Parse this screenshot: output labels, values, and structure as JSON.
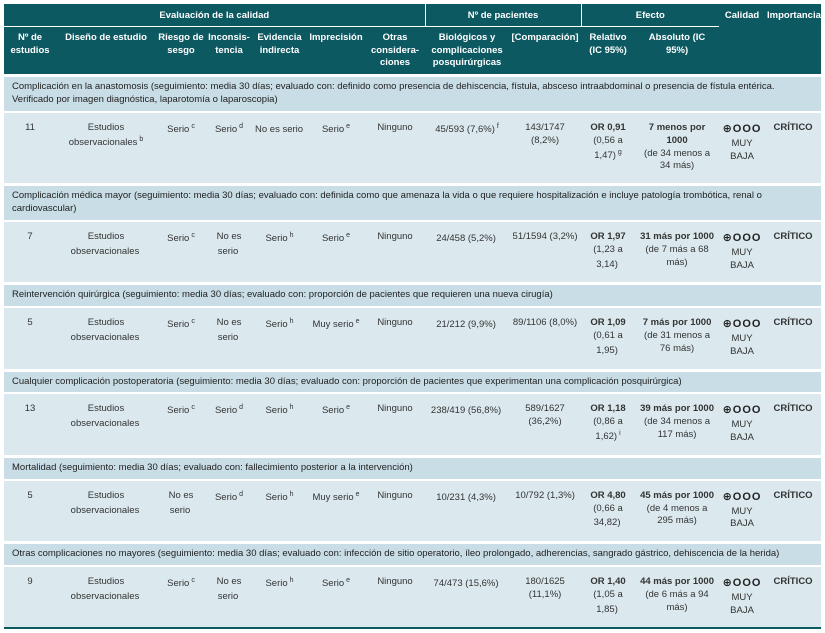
{
  "table": {
    "header": {
      "groups": {
        "quality_eval": "Evaluación de la calidad",
        "patients": "Nº de pacientes",
        "effect": "Efecto",
        "quality": "Calidad",
        "importance": "Importancia"
      },
      "columns": {
        "n_studies": "Nº de estudios",
        "design": "Diseño de estudio",
        "risk_of_bias": "Riesgo de sesgo",
        "inconsistency": "Inconsis-tencia",
        "indirectness": "Evidencia indirecta",
        "imprecision": "Imprecisión",
        "other": "Otras considera-ciones",
        "biologics": "Biológicos y complicaciones posquirúrgicas",
        "comparison": "[Comparación]",
        "relative": "Relativo (IC 95%)",
        "absolute": "Absoluto (IC 95%)"
      }
    },
    "colors": {
      "header_teal": "#0d5962",
      "section_band": "#c8dde5",
      "data_band": "#dbe9ee"
    },
    "sections": [
      {
        "title": "Complicación en la anastomosis (seguimiento: media 30 días; evaluado con: definido como presencia de dehiscencia, fístula, absceso intraabdominal o presencia de fístula entérica. Verificado por imagen diagnóstica, laparotomía o laparoscopia)",
        "row": {
          "n": "11",
          "design": "Estudios observacionales",
          "design_sup": "b",
          "rob": "Serio",
          "rob_sup": "c",
          "inc": "Serio",
          "inc_sup": "d",
          "ind": "No es serio",
          "imp": "Serio",
          "imp_sup": "e",
          "other": "Ninguno",
          "bio": "45/593 (7,6%)",
          "bio_sup": "f",
          "comp": "143/1747 (8,2%)",
          "rel_or": "OR 0,91",
          "rel_ci": "(0,56 a 1,47)",
          "rel_sup": "g",
          "abs_main": "7 menos por 1000",
          "abs_ci": "(de 34 menos a 34 más)",
          "quality_sym": "⊕OOO",
          "quality_label": "MUY BAJA",
          "importance": "CRÍTICO"
        }
      },
      {
        "title": "Complicación médica mayor (seguimiento: media 30 días; evaluado con: definida como que amenaza la vida o que requiere hospitalización e incluye patología trombótica, renal o cardiovascular)",
        "row": {
          "n": "7",
          "design": "Estudios observacionales",
          "rob": "Serio",
          "rob_sup": "c",
          "inc": "No es serio",
          "ind": "Serio",
          "ind_sup": "h",
          "imp": "Serio",
          "imp_sup": "e",
          "other": "Ninguno",
          "bio": "24/458 (5,2%)",
          "comp": "51/1594 (3,2%)",
          "rel_or": "OR 1,97",
          "rel_ci": "(1,23 a 3,14)",
          "abs_main": "31 más por 1000",
          "abs_ci": "(de 7 más a 68 más)",
          "quality_sym": "⊕OOO",
          "quality_label": "MUY BAJA",
          "importance": "CRÍTICO"
        }
      },
      {
        "title": "Reintervención quirúrgica (seguimiento: media 30 días; evaluado con: proporción de pacientes que requieren una nueva cirugía)",
        "row": {
          "n": "5",
          "design": "Estudios observacionales",
          "rob": "Serio",
          "rob_sup": "c",
          "inc": "No es serio",
          "ind": "Serio",
          "ind_sup": "h",
          "imp": "Muy serio",
          "imp_sup": "e",
          "other": "Ninguno",
          "bio": "21/212 (9,9%)",
          "comp": "89/1106 (8,0%)",
          "rel_or": "OR 1,09",
          "rel_ci": "(0,61 a 1,95)",
          "abs_main": "7 más por 1000",
          "abs_ci": "(de 31 menos a 76 más)",
          "quality_sym": "⊕OOO",
          "quality_label": "MUY BAJA",
          "importance": "CRÍTICO"
        }
      },
      {
        "title": "Cualquier complicación postoperatoria (seguimiento: media 30 días; evaluado con: proporción de pacientes que experimentan una complicación posquirúrgica)",
        "row": {
          "n": "13",
          "design": "Estudios observacionales",
          "rob": "Serio",
          "rob_sup": "c",
          "inc": "Serio",
          "inc_sup": "d",
          "ind": "Serio",
          "ind_sup": "h",
          "imp": "Serio",
          "imp_sup": "e",
          "other": "Ninguno",
          "bio": "238/419 (56,8%)",
          "comp": "589/1627 (36,2%)",
          "rel_or": "OR 1,18",
          "rel_ci": "(0,86 a 1,62)",
          "rel_sup": "i",
          "abs_main": "39 más por 1000",
          "abs_ci": "(de 34 menos a 117 más)",
          "quality_sym": "⊕OOO",
          "quality_label": "MUY BAJA",
          "importance": "CRÍTICO"
        }
      },
      {
        "title": "Mortalidad (seguimiento: media 30 días; evaluado con: fallecimiento posterior a la intervención)",
        "row": {
          "n": "5",
          "design": "Estudios observacionales",
          "rob": "No es serio",
          "inc": "Serio",
          "inc_sup": "d",
          "ind": "Serio",
          "ind_sup": "h",
          "imp": "Muy serio",
          "imp_sup": "e",
          "other": "Ninguno",
          "bio": "10/231 (4,3%)",
          "comp": "10/792 (1,3%)",
          "rel_or": "OR 4,80",
          "rel_ci": "(0,66 a 34,82)",
          "abs_main": "45 más por 1000",
          "abs_ci": "(de 4 menos a 295 más)",
          "quality_sym": "⊕OOO",
          "quality_label": "MUY BAJA",
          "importance": "CRÍTICO"
        }
      },
      {
        "title": "Otras complicaciones no mayores (seguimiento: media 30 días; evaluado con: infección de sitio operatorio, íleo prolongado, adherencias, sangrado gástrico, dehiscencia de la herida)",
        "row": {
          "n": "9",
          "design": "Estudios observacionales",
          "rob": "Serio",
          "rob_sup": "c",
          "inc": "No es serio",
          "ind": "Serio",
          "ind_sup": "h",
          "imp": "Serio",
          "imp_sup": "e",
          "other": "Ninguno",
          "bio": "74/473 (15,6%)",
          "comp": "180/1625 (11,1%)",
          "rel_or": "OR 1,40",
          "rel_ci": "(1,05 a 1,85)",
          "abs_main": "44 más por 1000",
          "abs_ci": "(de 6 más a 94 más)",
          "quality_sym": "⊕OOO",
          "quality_label": "MUY BAJA",
          "importance": "CRÍTICO"
        }
      }
    ]
  }
}
